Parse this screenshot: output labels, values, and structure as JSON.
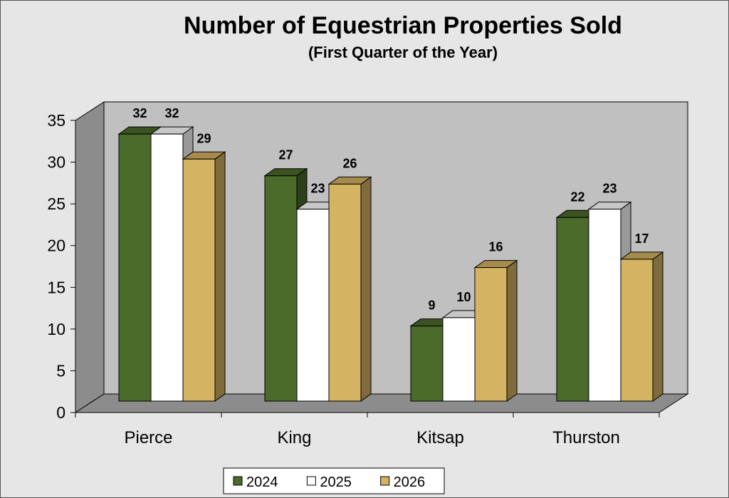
{
  "chart_data": {
    "type": "bar",
    "title": "Number of Equestrian Properties Sold",
    "subtitle": "(First Quarter of the Year)",
    "categories": [
      "Pierce",
      "King",
      "Kitsap",
      "Thurston"
    ],
    "series": [
      {
        "name": "2024",
        "values": [
          32,
          27,
          9,
          22
        ],
        "color": "#4a6b2a"
      },
      {
        "name": "2025",
        "values": [
          32,
          23,
          10,
          23
        ],
        "color": "#ffffff"
      },
      {
        "name": "2026",
        "values": [
          29,
          26,
          16,
          17
        ],
        "color": "#d4b363"
      }
    ],
    "ylim": [
      0,
      35
    ],
    "yticks": [
      0,
      5,
      10,
      15,
      20,
      25,
      30,
      35
    ],
    "legend_position": "bottom",
    "style": "3d-clustered-column",
    "data_labels": true
  }
}
